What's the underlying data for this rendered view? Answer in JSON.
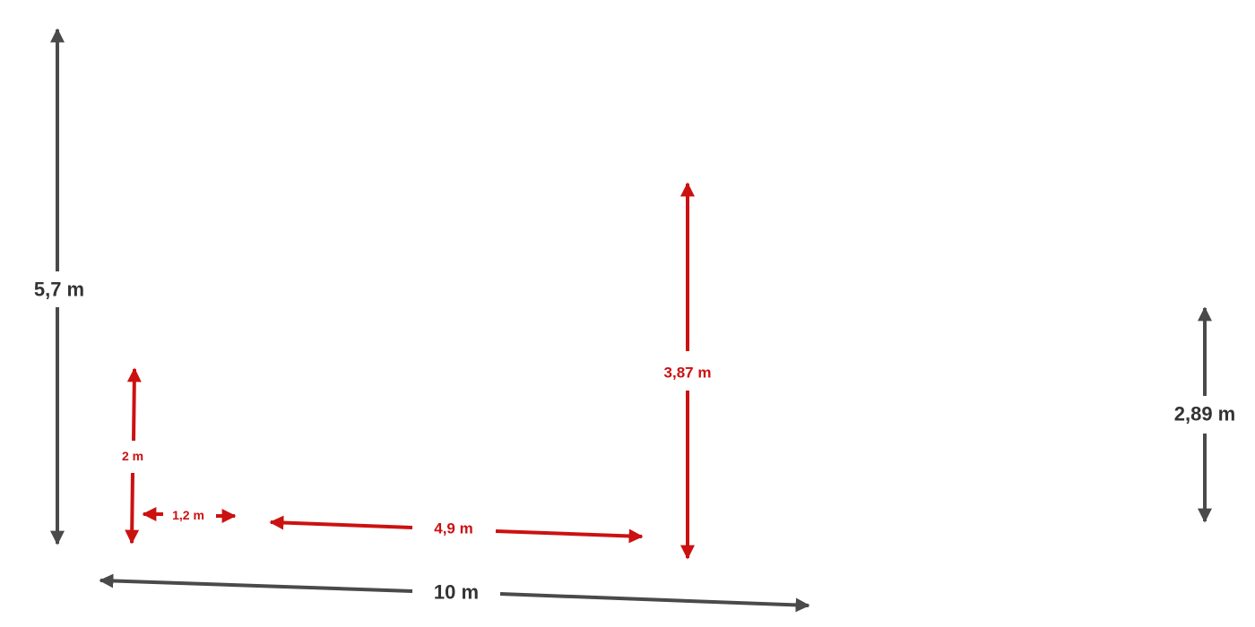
{
  "colors": {
    "gray": "#4a4a4a",
    "red": "#cc1111",
    "background": "#ffffff"
  },
  "dimensions": {
    "total_height": "5,7 m",
    "total_width": "10 m",
    "right_height": "2,89 m",
    "mid_height": "3,87 m",
    "left_height": "2 m",
    "left_gap": "1,2 m",
    "middle_span": "4,9 m"
  }
}
